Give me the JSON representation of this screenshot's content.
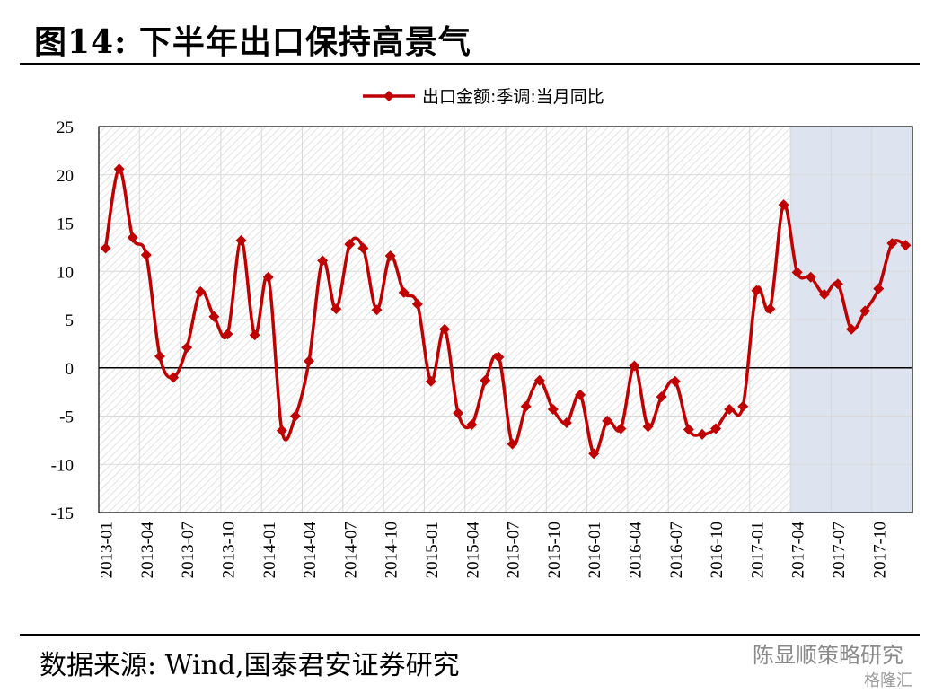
{
  "header": {
    "title": "图14: 下半年出口保持高景气"
  },
  "footer": {
    "source": "数据来源: Wind,国泰君安证券研究",
    "watermark_top": "陈显顺策略研究",
    "watermark_bottom": "格隆汇"
  },
  "colors": {
    "series": "#c00000",
    "highlight": "#dbe3ef",
    "grid": "#d9d9d9"
  },
  "chart_data": {
    "type": "line",
    "title": "",
    "xlabel": "",
    "ylabel": "",
    "ylim": [
      -15,
      25
    ],
    "y_ticks": [
      25,
      20,
      15,
      10,
      5,
      0,
      -5,
      -10,
      -15
    ],
    "x_tick_labels": [
      "2013-01",
      "2013-04",
      "2013-07",
      "2013-10",
      "2014-01",
      "2014-04",
      "2014-07",
      "2014-10",
      "2015-01",
      "2015-04",
      "2015-07",
      "2015-10",
      "2016-01",
      "2016-04",
      "2016-07",
      "2016-10",
      "2017-01",
      "2017-04",
      "2017-07",
      "2017-10"
    ],
    "grid": true,
    "legend": {
      "position": "top-center",
      "entries": [
        "出口金额:季调:当月同比"
      ]
    },
    "highlight_range": [
      "2017-04",
      "2017-12"
    ],
    "series": [
      {
        "name": "出口金额:季调:当月同比",
        "x": [
          "2013-01",
          "2013-02",
          "2013-03",
          "2013-04",
          "2013-05",
          "2013-06",
          "2013-07",
          "2013-08",
          "2013-09",
          "2013-10",
          "2013-11",
          "2013-12",
          "2014-01",
          "2014-02",
          "2014-03",
          "2014-04",
          "2014-05",
          "2014-06",
          "2014-07",
          "2014-08",
          "2014-09",
          "2014-10",
          "2014-11",
          "2014-12",
          "2015-01",
          "2015-02",
          "2015-03",
          "2015-04",
          "2015-05",
          "2015-06",
          "2015-07",
          "2015-08",
          "2015-09",
          "2015-10",
          "2015-11",
          "2015-12",
          "2016-01",
          "2016-02",
          "2016-03",
          "2016-04",
          "2016-05",
          "2016-06",
          "2016-07",
          "2016-08",
          "2016-09",
          "2016-10",
          "2016-11",
          "2016-12",
          "2017-01",
          "2017-02",
          "2017-03",
          "2017-04",
          "2017-05",
          "2017-06",
          "2017-07",
          "2017-08",
          "2017-09",
          "2017-10",
          "2017-11",
          "2017-12"
        ],
        "values": [
          12.4,
          20.6,
          13.5,
          11.7,
          1.2,
          -1.0,
          2.1,
          7.9,
          5.3,
          3.5,
          13.2,
          3.4,
          9.4,
          -6.5,
          -5.0,
          0.7,
          11.1,
          6.1,
          12.8,
          12.4,
          6.0,
          11.6,
          7.8,
          6.6,
          -1.4,
          4.0,
          -4.7,
          -5.9,
          -1.3,
          1.1,
          -7.9,
          -4.0,
          -1.3,
          -4.3,
          -5.7,
          -2.8,
          -8.9,
          -5.5,
          -6.3,
          0.2,
          -6.1,
          -3.0,
          -1.4,
          -6.4,
          -6.9,
          -6.3,
          -4.3,
          -4.0,
          8.0,
          6.1,
          16.9,
          9.9,
          9.4,
          7.6,
          8.7,
          4.0,
          5.9,
          8.2,
          12.9,
          12.7
        ]
      }
    ]
  }
}
